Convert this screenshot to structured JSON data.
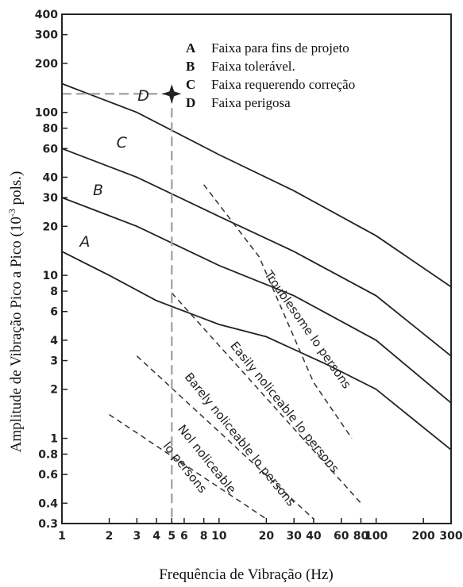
{
  "chart_data": {
    "type": "line",
    "title": "",
    "xlabel": "Frequência de Vibração (Hz)",
    "ylabel_main": "Amplitude de Vibração Pico a Pico (10",
    "ylabel_exp": "-3",
    "ylabel_tail": " pols.)",
    "x_scale": "log",
    "y_scale": "log",
    "xlim": [
      1,
      300
    ],
    "ylim": [
      0.3,
      400
    ],
    "x_ticks": [
      {
        "v": 1,
        "label": "1"
      },
      {
        "v": 2,
        "label": "2"
      },
      {
        "v": 3,
        "label": "3"
      },
      {
        "v": 4,
        "label": "4"
      },
      {
        "v": 5,
        "label": "5"
      },
      {
        "v": 6,
        "label": "6"
      },
      {
        "v": 8,
        "label": "8"
      },
      {
        "v": 10,
        "label": "10"
      },
      {
        "v": 20,
        "label": "20"
      },
      {
        "v": 30,
        "label": "30"
      },
      {
        "v": 40,
        "label": "40"
      },
      {
        "v": 60,
        "label": "60"
      },
      {
        "v": 80,
        "label": "80"
      },
      {
        "v": 100,
        "label": "100"
      },
      {
        "v": 200,
        "label": "200"
      },
      {
        "v": 300,
        "label": "300"
      }
    ],
    "y_ticks": [
      {
        "v": 0.3,
        "label": "0.3"
      },
      {
        "v": 0.4,
        "label": "0.4"
      },
      {
        "v": 0.6,
        "label": "0.6"
      },
      {
        "v": 0.8,
        "label": "0.8"
      },
      {
        "v": 1,
        "label": "1"
      },
      {
        "v": 2,
        "label": "2"
      },
      {
        "v": 3,
        "label": "3"
      },
      {
        "v": 4,
        "label": "4"
      },
      {
        "v": 6,
        "label": "6"
      },
      {
        "v": 8,
        "label": "8"
      },
      {
        "v": 10,
        "label": "10"
      },
      {
        "v": 20,
        "label": "20"
      },
      {
        "v": 30,
        "label": "30"
      },
      {
        "v": 40,
        "label": "40"
      },
      {
        "v": 60,
        "label": "60"
      },
      {
        "v": 80,
        "label": "80"
      },
      {
        "v": 100,
        "label": "100"
      },
      {
        "v": 200,
        "label": "200"
      },
      {
        "v": 300,
        "label": "300"
      },
      {
        "v": 400,
        "label": "400"
      }
    ],
    "series": [
      {
        "name": "A",
        "style": "solid",
        "points": [
          [
            1,
            14
          ],
          [
            2,
            10
          ],
          [
            4,
            7
          ],
          [
            10,
            5
          ],
          [
            20,
            4.2
          ],
          [
            50,
            2.8
          ],
          [
            100,
            2
          ],
          [
            300,
            0.85
          ]
        ]
      },
      {
        "name": "B",
        "style": "solid",
        "points": [
          [
            1,
            30
          ],
          [
            3,
            20
          ],
          [
            10,
            11.5
          ],
          [
            30,
            7.5
          ],
          [
            100,
            4
          ],
          [
            300,
            1.65
          ]
        ]
      },
      {
        "name": "C",
        "style": "solid",
        "points": [
          [
            1,
            60
          ],
          [
            3,
            40
          ],
          [
            10,
            23
          ],
          [
            30,
            14
          ],
          [
            100,
            7.5
          ],
          [
            300,
            3.2
          ]
        ]
      },
      {
        "name": "D",
        "style": "solid",
        "points": [
          [
            1,
            150
          ],
          [
            3,
            100
          ],
          [
            10,
            55
          ],
          [
            30,
            33
          ],
          [
            100,
            17.5
          ],
          [
            300,
            8.5
          ]
        ]
      }
    ],
    "dashed_lines": [
      {
        "name": "troublesome-boundary",
        "points": [
          [
            8,
            36
          ],
          [
            18,
            13
          ],
          [
            40,
            2.2
          ],
          [
            70,
            1
          ]
        ]
      },
      {
        "name": "easily-noticeable-boundary",
        "points": [
          [
            5,
            7.8
          ],
          [
            80,
            0.4
          ]
        ]
      },
      {
        "name": "barely-noticeable-boundary",
        "points": [
          [
            3,
            3.2
          ],
          [
            40,
            0.32
          ]
        ]
      },
      {
        "name": "not-noticeable-boundary",
        "points": [
          [
            2,
            1.4
          ],
          [
            20,
            0.32
          ]
        ]
      }
    ],
    "zone_labels": [
      {
        "text": "Troublesome lo persons",
        "x": 35,
        "y": 4.5,
        "angle": 55
      },
      {
        "text": "Easily noliceable lo persons",
        "x": 25,
        "y": 1.5,
        "angle": 51
      },
      {
        "text": "Barely noliceable lo persons",
        "x": 13,
        "y": 0.95,
        "angle": 51
      },
      {
        "text": "Nol noliceable",
        "x": 8,
        "y": 0.72,
        "angle": 51
      },
      {
        "text": "lo persons",
        "x": 5.8,
        "y": 0.64,
        "angle": 51
      }
    ],
    "curve_labels": [
      {
        "text": "A",
        "x": 1.4,
        "y": 15
      },
      {
        "text": "B",
        "x": 1.7,
        "y": 31
      },
      {
        "text": "C",
        "x": 2.4,
        "y": 61
      },
      {
        "text": "D",
        "x": 3.3,
        "y": 118
      }
    ],
    "marker": {
      "x": 5,
      "y": 130,
      "shape": "four-point-star"
    },
    "legend": [
      {
        "key": "A",
        "text": "Faixa  para fins de projeto"
      },
      {
        "key": "B",
        "text": "Faixa tolerável."
      },
      {
        "key": "C",
        "text": "Faixa  requerendo correção"
      },
      {
        "key": "D",
        "text": "Faixa perigosa"
      }
    ],
    "legend_position": "top-right",
    "grid": false,
    "colors": {
      "curve": "#222222",
      "dashed": "#333333",
      "marker_guide": "#aaaaaa",
      "marker": "#222222"
    }
  }
}
